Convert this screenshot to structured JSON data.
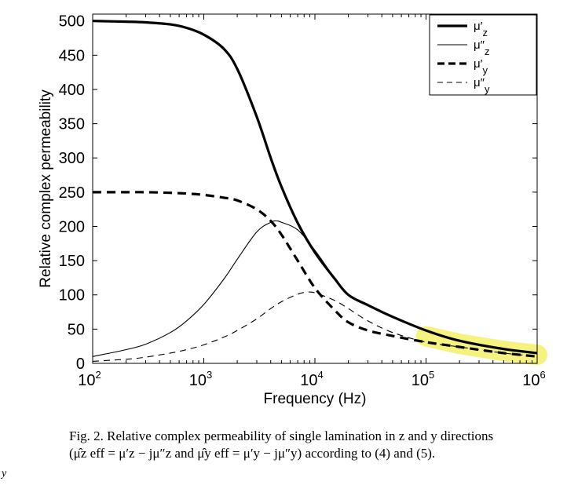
{
  "chart_data": {
    "type": "line",
    "title": "",
    "xlabel": "Frequency (Hz)",
    "ylabel": "Relative complex permeability",
    "x_scale": "log",
    "xlim": [
      100,
      1000000
    ],
    "ylim": [
      0,
      510
    ],
    "x_ticks": [
      {
        "value": 100,
        "base": "10",
        "exp": "2"
      },
      {
        "value": 1000,
        "base": "10",
        "exp": "3"
      },
      {
        "value": 10000,
        "base": "10",
        "exp": "4"
      },
      {
        "value": 100000,
        "base": "10",
        "exp": "5"
      },
      {
        "value": 1000000,
        "base": "10",
        "exp": "6"
      }
    ],
    "y_ticks": [
      0,
      50,
      100,
      150,
      200,
      250,
      300,
      350,
      400,
      450,
      500
    ],
    "grid": false,
    "legend_position": "top-right",
    "highlight": {
      "color": "#f5f06a",
      "x_range": [
        100000,
        1000000
      ]
    },
    "series": [
      {
        "name": "μ′z",
        "label_main": "μ′",
        "label_sub": "z",
        "style": "thick-solid",
        "x": [
          100,
          200,
          300,
          500,
          700,
          1000,
          1500,
          2000,
          3000,
          4000,
          5000,
          7000,
          10000,
          15000,
          20000,
          30000,
          50000,
          100000,
          200000,
          500000,
          1000000
        ],
        "values": [
          500,
          499,
          498,
          495,
          490,
          480,
          460,
          430,
          360,
          300,
          258,
          205,
          162,
          124,
          100,
          85,
          68,
          48,
          33,
          21,
          15
        ]
      },
      {
        "name": "μ″z",
        "label_main": "μ″",
        "label_sub": "z",
        "style": "thin-solid",
        "x": [
          100,
          200,
          300,
          500,
          700,
          1000,
          1500,
          2000,
          3000,
          4000,
          4500,
          5000,
          7000,
          10000,
          15000,
          20000,
          30000,
          50000,
          100000,
          200000,
          500000,
          1000000
        ],
        "values": [
          10,
          20,
          28,
          45,
          62,
          86,
          122,
          152,
          192,
          206,
          208,
          206,
          195,
          165,
          125,
          100,
          85,
          68,
          48,
          33,
          21,
          15
        ]
      },
      {
        "name": "μ′y",
        "label_main": "μ′",
        "label_sub": "y",
        "style": "thick-dashed",
        "x": [
          100,
          200,
          300,
          500,
          700,
          1000,
          1500,
          2000,
          3000,
          4000,
          5000,
          7000,
          10000,
          15000,
          20000,
          30000,
          50000,
          100000,
          200000,
          500000,
          1000000
        ],
        "values": [
          250,
          250,
          250,
          249,
          248,
          246,
          242,
          238,
          225,
          208,
          188,
          150,
          110,
          78,
          60,
          48,
          40,
          31,
          24,
          15,
          10
        ]
      },
      {
        "name": "μ″y",
        "label_main": "μ″",
        "label_sub": "y",
        "style": "thin-dashed",
        "x": [
          100,
          200,
          300,
          500,
          700,
          1000,
          1500,
          2000,
          3000,
          4000,
          5000,
          7000,
          8500,
          10000,
          15000,
          20000,
          30000,
          50000,
          100000,
          200000,
          500000,
          1000000
        ],
        "values": [
          3,
          6,
          9,
          15,
          20,
          27,
          38,
          48,
          65,
          80,
          90,
          101,
          104,
          103,
          92,
          80,
          62,
          45,
          31,
          24,
          15,
          10
        ]
      }
    ]
  },
  "caption": {
    "line1": "Fig. 2.   Relative complex permeability of single lamination in z and y directions",
    "line2": "(μ̂z eff = μ′z − jμ″z and μ̂y eff = μ′y − jμ″y) according to (4) and (5)."
  },
  "stray_mark": "y"
}
